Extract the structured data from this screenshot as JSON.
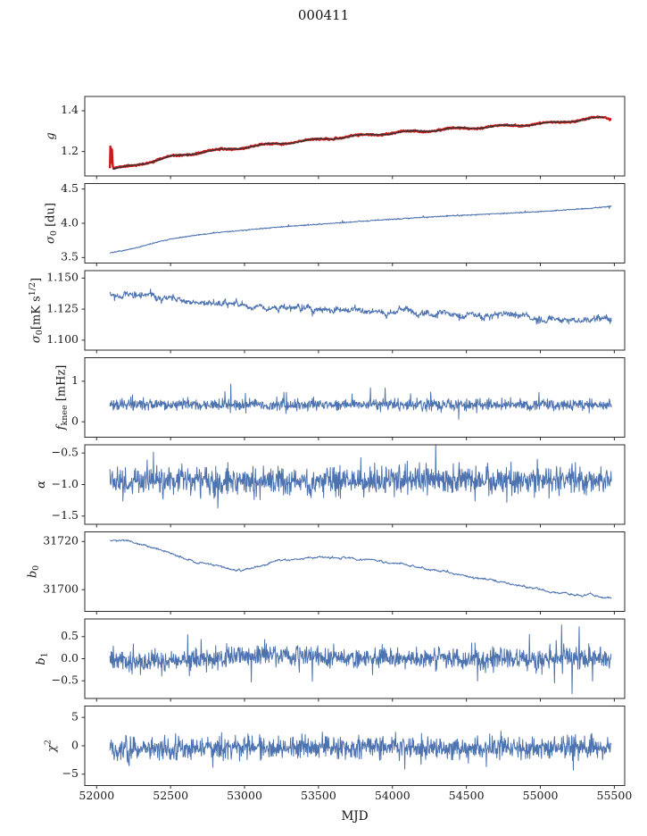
{
  "title": "000411",
  "xlabel": "MJD",
  "colors": {
    "line": "#4c72b0",
    "red": "#cc1a1a",
    "dark": "#333333",
    "frame": "#2b2b2b",
    "text": "#1a1a1a"
  },
  "axis": {
    "xlim": [
      51920,
      55570
    ],
    "xticks": [
      52000,
      52500,
      53000,
      53500,
      54000,
      54500,
      55000,
      55500
    ],
    "xtick_labels": [
      "52000",
      "52500",
      "53000",
      "53500",
      "54000",
      "54500",
      "55000",
      "55500"
    ],
    "x_data_range": [
      52090,
      55480
    ]
  },
  "chart_data": {
    "type": "line",
    "n_points": 1200,
    "panels": [
      {
        "name": "g",
        "ylabel": [
          [
            "g",
            "i"
          ]
        ],
        "ylim": [
          1.08,
          1.47
        ],
        "yticks": [
          1.2,
          1.4
        ],
        "ytick_labels": [
          "1.2",
          "1.4"
        ],
        "series": [
          {
            "color": "red",
            "width": 2.4,
            "seed": 11,
            "noise": 0.002,
            "wiggle": {
              "amp": 0.005,
              "period": 320
            },
            "trend": [
              [
                52090,
                1.12
              ],
              [
                52094,
                1.27
              ],
              [
                52098,
                1.14
              ],
              [
                52103,
                1.23
              ],
              [
                52108,
                1.13
              ],
              [
                52114,
                1.115
              ],
              [
                52200,
                1.124
              ],
              [
                52350,
                1.148
              ],
              [
                52500,
                1.173
              ],
              [
                52700,
                1.196
              ],
              [
                53000,
                1.221
              ],
              [
                53300,
                1.244
              ],
              [
                53600,
                1.266
              ],
              [
                53900,
                1.285
              ],
              [
                54200,
                1.301
              ],
              [
                54500,
                1.315
              ],
              [
                54800,
                1.327
              ],
              [
                55100,
                1.341
              ],
              [
                55250,
                1.354
              ],
              [
                55350,
                1.362
              ],
              [
                55430,
                1.366
              ],
              [
                55480,
                1.358
              ]
            ]
          },
          {
            "color": "dark",
            "width": 1.1,
            "seed": 12,
            "noise": 0.0015,
            "wiggle": {
              "amp": 0.005,
              "period": 320
            },
            "xrange": [
              52108,
              55430
            ],
            "trend": [
              [
                52108,
                1.112
              ],
              [
                52200,
                1.124
              ],
              [
                52350,
                1.148
              ],
              [
                52500,
                1.173
              ],
              [
                52700,
                1.196
              ],
              [
                53000,
                1.221
              ],
              [
                53300,
                1.244
              ],
              [
                53600,
                1.266
              ],
              [
                53900,
                1.285
              ],
              [
                54200,
                1.301
              ],
              [
                54500,
                1.315
              ],
              [
                54800,
                1.327
              ],
              [
                55100,
                1.341
              ],
              [
                55250,
                1.354
              ],
              [
                55350,
                1.362
              ],
              [
                55430,
                1.365
              ]
            ]
          }
        ]
      },
      {
        "name": "sigma0-du",
        "ylabel": [
          [
            "σ",
            "i"
          ],
          [
            "0",
            "sub"
          ],
          [
            " [du]",
            "n"
          ]
        ],
        "ylim": [
          3.42,
          4.58
        ],
        "yticks": [
          3.5,
          4.0,
          4.5
        ],
        "ytick_labels": [
          "3.5",
          "4.0",
          "4.5"
        ],
        "series": [
          {
            "color": "line",
            "width": 1,
            "seed": 21,
            "noise": 0.004,
            "spikes": {
              "prob": 0.003,
              "amp": [
                0.015,
                0.04
              ],
              "pos_frac": 0.7
            },
            "trend": [
              [
                52090,
                3.57
              ],
              [
                52200,
                3.61
              ],
              [
                52300,
                3.66
              ],
              [
                52400,
                3.72
              ],
              [
                52500,
                3.77
              ],
              [
                52650,
                3.82
              ],
              [
                52800,
                3.86
              ],
              [
                53000,
                3.9
              ],
              [
                53200,
                3.94
              ],
              [
                53400,
                3.97
              ],
              [
                53600,
                4.0
              ],
              [
                53800,
                4.03
              ],
              [
                54000,
                4.06
              ],
              [
                54200,
                4.085
              ],
              [
                54400,
                4.11
              ],
              [
                54600,
                4.13
              ],
              [
                54800,
                4.15
              ],
              [
                55000,
                4.17
              ],
              [
                55200,
                4.2
              ],
              [
                55350,
                4.22
              ],
              [
                55480,
                4.25
              ]
            ]
          }
        ]
      },
      {
        "name": "sigma0-mks",
        "ylabel": [
          [
            "σ",
            "i"
          ],
          [
            "0",
            "sub"
          ],
          [
            "[mK s",
            "n"
          ],
          [
            "1/2",
            "sup"
          ],
          [
            "]",
            "n"
          ]
        ],
        "ylim": [
          1.092,
          1.156
        ],
        "yticks": [
          1.1,
          1.125,
          1.15
        ],
        "ytick_labels": [
          "1.100",
          "1.125",
          "1.150"
        ],
        "series": [
          {
            "color": "line",
            "width": 1,
            "seed": 31,
            "noise": 0.0011,
            "ar": {
              "rho": 0.92,
              "scale": 0.0005
            },
            "trend": [
              [
                52090,
                1.1365
              ],
              [
                52300,
                1.1358
              ],
              [
                52500,
                1.1342
              ],
              [
                52700,
                1.131
              ],
              [
                52900,
                1.1292
              ],
              [
                53100,
                1.1272
              ],
              [
                53300,
                1.1267
              ],
              [
                53500,
                1.1252
              ],
              [
                53700,
                1.1243
              ],
              [
                54000,
                1.1228
              ],
              [
                54300,
                1.1212
              ],
              [
                54600,
                1.1195
              ],
              [
                54900,
                1.1187
              ],
              [
                55100,
                1.1172
              ],
              [
                55300,
                1.1162
              ],
              [
                55480,
                1.1165
              ]
            ]
          }
        ]
      },
      {
        "name": "fknee",
        "ylabel": [
          [
            "f",
            "i"
          ],
          [
            "knee",
            "sub"
          ],
          [
            " [mHz]",
            "n"
          ]
        ],
        "ylim": [
          -0.38,
          1.58
        ],
        "yticks": [
          0,
          1
        ],
        "ytick_labels": [
          "0",
          "1"
        ],
        "series": [
          {
            "color": "line",
            "width": 1,
            "seed": 41,
            "noise": 0.07,
            "spikes": {
              "prob": 0.015,
              "amp": [
                0.15,
                0.5
              ],
              "pos_frac": 0.8
            },
            "trend": [
              [
                52090,
                0.42
              ],
              [
                55480,
                0.42
              ]
            ]
          }
        ]
      },
      {
        "name": "alpha",
        "ylabel": [
          [
            "α",
            "i"
          ]
        ],
        "ylim": [
          -1.63,
          -0.37
        ],
        "yticks": [
          -1.5,
          -1.0,
          -0.5
        ],
        "ytick_labels": [
          "−1.5",
          "−1.0",
          "−0.5"
        ],
        "series": [
          {
            "color": "line",
            "width": 1,
            "seed": 51,
            "noise": 0.11,
            "spikes": {
              "prob": 0.012,
              "amp": [
                0.15,
                0.4
              ],
              "pos_frac": 0.5
            },
            "trend": [
              [
                52090,
                -0.95
              ],
              [
                55480,
                -0.93
              ]
            ]
          }
        ]
      },
      {
        "name": "b0",
        "ylabel": [
          [
            "b",
            "i"
          ],
          [
            "0",
            "sub"
          ]
        ],
        "ylim": [
          31691,
          31724
        ],
        "yticks": [
          31700,
          31720
        ],
        "ytick_labels": [
          "31700",
          "31720"
        ],
        "series": [
          {
            "color": "line",
            "width": 1,
            "seed": 61,
            "noise": 0.12,
            "ar": {
              "rho": 0.9,
              "scale": 0.12
            },
            "trend": [
              [
                52090,
                31720.5
              ],
              [
                52200,
                31720.2
              ],
              [
                52300,
                31718.8
              ],
              [
                52450,
                31715.8
              ],
              [
                52600,
                31712.8
              ],
              [
                52750,
                31710.6
              ],
              [
                52900,
                31708.6
              ],
              [
                52980,
                31707.8
              ],
              [
                53050,
                31708.8
              ],
              [
                53150,
                31710.8
              ],
              [
                53250,
                31712.4
              ],
              [
                53400,
                31713.2
              ],
              [
                53550,
                31713.6
              ],
              [
                53700,
                31713.2
              ],
              [
                53850,
                31712.4
              ],
              [
                54000,
                31711.2
              ],
              [
                54150,
                31709.6
              ],
              [
                54300,
                31708.0
              ],
              [
                54450,
                31706.4
              ],
              [
                54600,
                31704.6
              ],
              [
                54750,
                31702.9
              ],
              [
                54900,
                31701.1
              ],
              [
                55000,
                31699.9
              ],
              [
                55100,
                31698.9
              ],
              [
                55180,
                31698.4
              ],
              [
                55260,
                31697.7
              ],
              [
                55330,
                31698.0
              ],
              [
                55400,
                31697.1
              ],
              [
                55480,
                31696.9
              ]
            ]
          }
        ]
      },
      {
        "name": "b1",
        "ylabel": [
          [
            "b",
            "i"
          ],
          [
            "1",
            "sub"
          ]
        ],
        "ylim": [
          -0.9,
          0.9
        ],
        "yticks": [
          -0.5,
          0.0,
          0.5
        ],
        "ytick_labels": [
          "−0.5",
          "0.0",
          "0.5"
        ],
        "series": [
          {
            "color": "line",
            "width": 1,
            "seed": 71,
            "noise": 0.12,
            "spikes": {
              "prob": 0.012,
              "amp": [
                0.25,
                0.6
              ],
              "pos_frac": 0.5
            },
            "end_spikes": {
              "x": 55080,
              "prob": 0.05,
              "amp": [
                0.35,
                0.8
              ],
              "pos_frac": 0.5
            },
            "trend": [
              [
                52090,
                0.02
              ],
              [
                52300,
                -0.08
              ],
              [
                52600,
                -0.04
              ],
              [
                53000,
                0.05
              ],
              [
                53200,
                0.08
              ],
              [
                53500,
                0.04
              ],
              [
                54000,
                0.0
              ],
              [
                55480,
                0.0
              ]
            ]
          }
        ]
      },
      {
        "name": "chi2",
        "ylabel": [
          [
            "χ",
            "i"
          ],
          [
            "2",
            "sup"
          ]
        ],
        "ylim": [
          -7,
          7
        ],
        "yticks": [
          -5,
          0,
          5
        ],
        "ytick_labels": [
          "−5",
          "0",
          "5"
        ],
        "series": [
          {
            "color": "line",
            "width": 1,
            "seed": 81,
            "noise": 1.0,
            "spikes": {
              "prob": 0.01,
              "amp": [
                1.2,
                3.2
              ],
              "pos_frac": 0.4
            },
            "trend": [
              [
                52090,
                -0.6
              ],
              [
                53000,
                -0.4
              ],
              [
                54000,
                -0.3
              ],
              [
                55480,
                -0.2
              ]
            ]
          }
        ]
      }
    ]
  }
}
